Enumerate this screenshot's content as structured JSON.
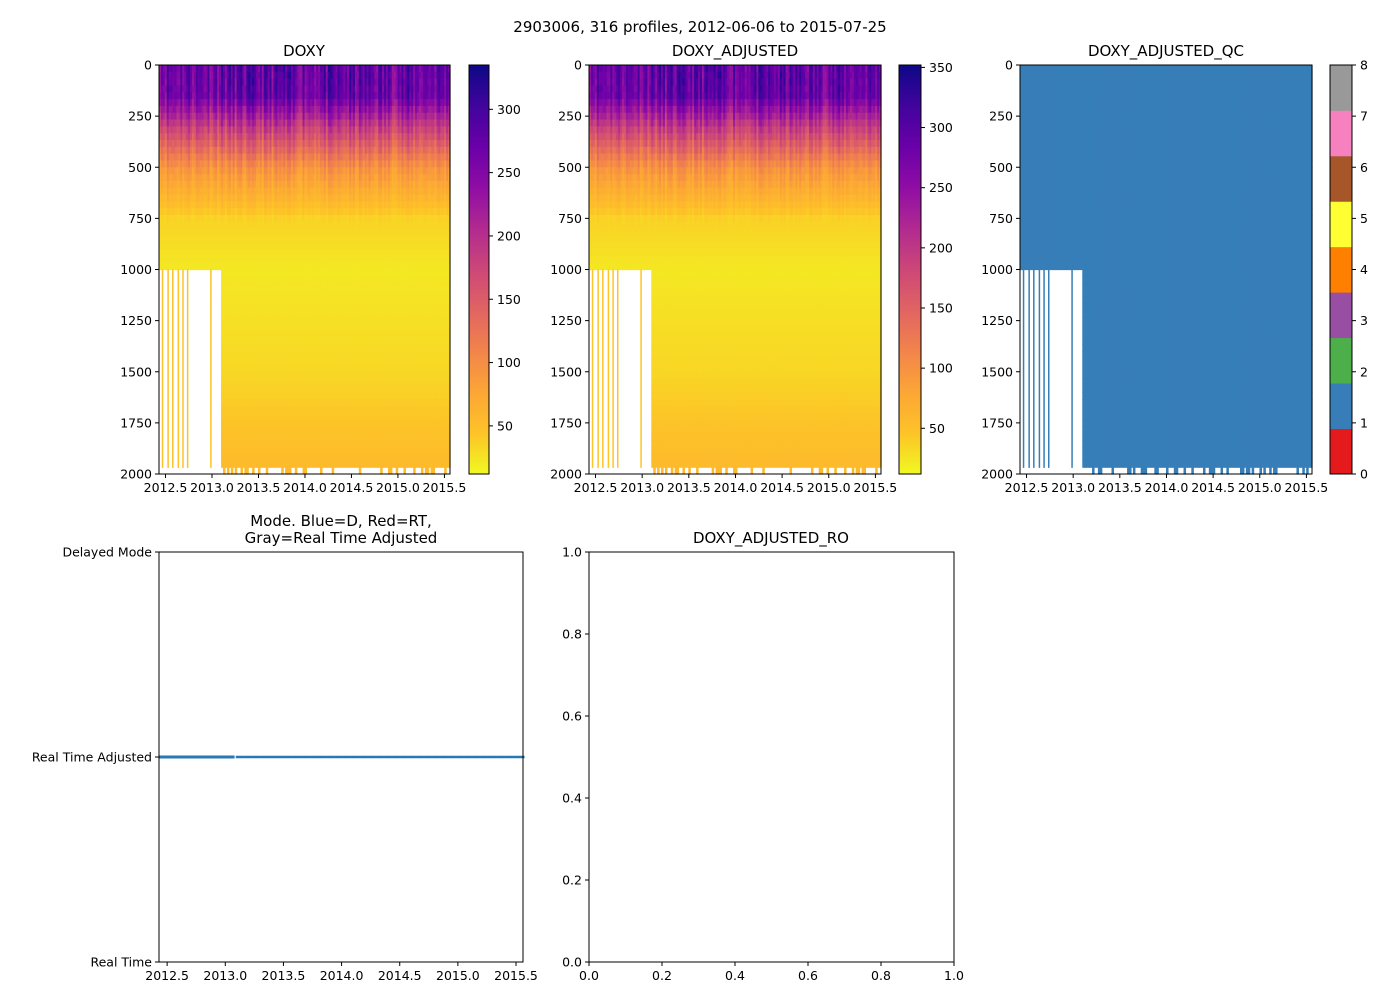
{
  "suptitle": "2903006, 316 profiles, 2012-06-06 to 2015-07-25",
  "colors": {
    "mode_line": "#2878b5",
    "qc_fill": "#377eb8",
    "axis": "#000000",
    "background": "#ffffff"
  },
  "chart_data": [
    {
      "type": "heatmap",
      "title": "DOXY",
      "xlabel": "",
      "ylabel": "",
      "xlim": [
        2012.43,
        2015.56
      ],
      "ylim": [
        2000,
        0
      ],
      "xticks": [
        "2012.5",
        "2013.0",
        "2013.5",
        "2014.0",
        "2014.5",
        "2015.0",
        "2015.5"
      ],
      "xtick_values": [
        2012.5,
        2013.0,
        2013.5,
        2014.0,
        2014.5,
        2015.0,
        2015.5
      ],
      "yticks": [
        "0",
        "250",
        "500",
        "750",
        "1000",
        "1250",
        "1500",
        "1750",
        "2000"
      ],
      "ytick_values": [
        0,
        250,
        500,
        750,
        1000,
        1250,
        1500,
        1750,
        2000
      ],
      "colormap": "plasma_r",
      "clim": [
        12,
        335
      ],
      "colorbar_ticks": [
        "50",
        "100",
        "150",
        "200",
        "250",
        "300"
      ],
      "colorbar_tick_values": [
        50,
        100,
        150,
        200,
        250,
        300
      ],
      "depth_profile": [
        {
          "depth": 0,
          "value": 275
        },
        {
          "depth": 150,
          "value": 270
        },
        {
          "depth": 300,
          "value": 185
        },
        {
          "depth": 500,
          "value": 95
        },
        {
          "depth": 750,
          "value": 35
        },
        {
          "depth": 1000,
          "value": 22
        },
        {
          "depth": 1500,
          "value": 32
        },
        {
          "depth": 2000,
          "value": 55
        }
      ],
      "early_profiles_max_depth": 1000,
      "early_period_end": 2013.08
    },
    {
      "type": "heatmap",
      "title": "DOXY_ADJUSTED",
      "xlabel": "",
      "ylabel": "",
      "xlim": [
        2012.43,
        2015.56
      ],
      "ylim": [
        2000,
        0
      ],
      "xticks": [
        "2012.5",
        "2013.0",
        "2013.5",
        "2014.0",
        "2014.5",
        "2015.0",
        "2015.5"
      ],
      "xtick_values": [
        2012.5,
        2013.0,
        2013.5,
        2014.0,
        2014.5,
        2015.0,
        2015.5
      ],
      "yticks": [
        "0",
        "250",
        "500",
        "750",
        "1000",
        "1250",
        "1500",
        "1750",
        "2000"
      ],
      "ytick_values": [
        0,
        250,
        500,
        750,
        1000,
        1250,
        1500,
        1750,
        2000
      ],
      "colormap": "plasma_r",
      "clim": [
        12,
        352
      ],
      "colorbar_ticks": [
        "50",
        "100",
        "150",
        "200",
        "250",
        "300",
        "350"
      ],
      "colorbar_tick_values": [
        50,
        100,
        150,
        200,
        250,
        300,
        350
      ],
      "depth_profile": [
        {
          "depth": 0,
          "value": 290
        },
        {
          "depth": 150,
          "value": 285
        },
        {
          "depth": 300,
          "value": 195
        },
        {
          "depth": 500,
          "value": 100
        },
        {
          "depth": 750,
          "value": 37
        },
        {
          "depth": 1000,
          "value": 23
        },
        {
          "depth": 1500,
          "value": 34
        },
        {
          "depth": 2000,
          "value": 58
        }
      ],
      "early_profiles_max_depth": 1000,
      "early_period_end": 2013.08
    },
    {
      "type": "heatmap",
      "title": "DOXY_ADJUSTED_QC",
      "xlabel": "",
      "ylabel": "",
      "xlim": [
        2012.43,
        2015.56
      ],
      "ylim": [
        2000,
        0
      ],
      "xticks": [
        "2012.5",
        "2013.0",
        "2013.5",
        "2014.0",
        "2014.5",
        "2015.0",
        "2015.5"
      ],
      "xtick_values": [
        2012.5,
        2013.0,
        2013.5,
        2014.0,
        2014.5,
        2015.0,
        2015.5
      ],
      "yticks": [
        "0",
        "250",
        "500",
        "750",
        "1000",
        "1250",
        "1500",
        "1750",
        "2000"
      ],
      "ytick_values": [
        0,
        250,
        500,
        750,
        1000,
        1250,
        1500,
        1750,
        2000
      ],
      "colormap": "Set1",
      "clim": [
        0,
        8
      ],
      "qc_value_everywhere": 1,
      "colorbar_ticks": [
        "0",
        "1",
        "2",
        "3",
        "4",
        "5",
        "6",
        "7",
        "8"
      ],
      "colorbar_tick_values": [
        0,
        1,
        2,
        3,
        4,
        5,
        6,
        7,
        8
      ],
      "colorbar_colors": [
        "#e41a1c",
        "#377eb8",
        "#4daf4a",
        "#984ea3",
        "#ff7f00",
        "#ffff33",
        "#a65628",
        "#f781bf",
        "#999999"
      ],
      "early_profiles_max_depth": 1000,
      "early_period_end": 2013.08
    },
    {
      "type": "line",
      "title_line1": "Mode. Blue=D, Red=RT,",
      "title_line2": "Gray=Real Time Adjusted",
      "xlim": [
        2012.43,
        2015.56
      ],
      "ylim": [
        0,
        2
      ],
      "xticks": [
        "2012.5",
        "2013.0",
        "2013.5",
        "2014.0",
        "2014.5",
        "2015.0",
        "2015.5"
      ],
      "xtick_values": [
        2012.5,
        2013.0,
        2013.5,
        2014.0,
        2014.5,
        2015.0,
        2015.5
      ],
      "yticks": [
        "Real Time",
        "Real Time Adjusted",
        "Delayed Mode"
      ],
      "ytick_values": [
        0,
        1,
        2
      ],
      "series": [
        {
          "name": "mode",
          "x_start": 2012.43,
          "x_end": 2015.56,
          "y": 1,
          "dense_until": 2013.08
        }
      ]
    },
    {
      "type": "line",
      "title": "DOXY_ADJUSTED_RO",
      "xlim": [
        0,
        1
      ],
      "ylim": [
        0,
        1
      ],
      "xticks": [
        "0.0",
        "0.2",
        "0.4",
        "0.6",
        "0.8",
        "1.0"
      ],
      "xtick_values": [
        0,
        0.2,
        0.4,
        0.6,
        0.8,
        1.0
      ],
      "yticks": [
        "0.0",
        "0.2",
        "0.4",
        "0.6",
        "0.8",
        "1.0"
      ],
      "ytick_values": [
        0,
        0.2,
        0.4,
        0.6,
        0.8,
        1.0
      ],
      "series": []
    }
  ]
}
